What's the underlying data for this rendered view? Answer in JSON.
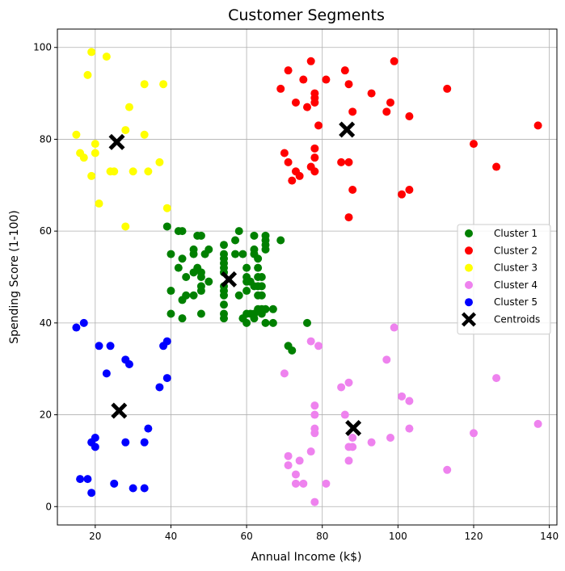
{
  "chart_data": {
    "type": "scatter",
    "title": "Customer Segments",
    "xlabel": "Annual Income (k$)",
    "ylabel": "Spending Score (1-100)",
    "xlim": [
      10,
      142
    ],
    "ylim": [
      -4,
      104
    ],
    "xticks": [
      20,
      40,
      60,
      80,
      100,
      120,
      140
    ],
    "yticks": [
      0,
      20,
      40,
      60,
      80,
      100
    ],
    "grid": true,
    "legend_position": "center-right",
    "series": [
      {
        "name": "Cluster 1",
        "color": "#008000",
        "points": [
          [
            39,
            61
          ],
          [
            40,
            55
          ],
          [
            40,
            47
          ],
          [
            40,
            42
          ],
          [
            42,
            52
          ],
          [
            42,
            60
          ],
          [
            43,
            60
          ],
          [
            43,
            54
          ],
          [
            43,
            45
          ],
          [
            43,
            41
          ],
          [
            44,
            50
          ],
          [
            44,
            46
          ],
          [
            46,
            51
          ],
          [
            46,
            46
          ],
          [
            46,
            56
          ],
          [
            46,
            55
          ],
          [
            47,
            52
          ],
          [
            47,
            59
          ],
          [
            48,
            51
          ],
          [
            48,
            59
          ],
          [
            48,
            50
          ],
          [
            48,
            48
          ],
          [
            48,
            47
          ],
          [
            48,
            42
          ],
          [
            49,
            55
          ],
          [
            50,
            49
          ],
          [
            50,
            56
          ],
          [
            54,
            47
          ],
          [
            54,
            54
          ],
          [
            54,
            53
          ],
          [
            54,
            48
          ],
          [
            54,
            52
          ],
          [
            54,
            42
          ],
          [
            54,
            51
          ],
          [
            54,
            55
          ],
          [
            54,
            41
          ],
          [
            54,
            44
          ],
          [
            54,
            57
          ],
          [
            54,
            46
          ],
          [
            57,
            58
          ],
          [
            57,
            55
          ],
          [
            58,
            60
          ],
          [
            58,
            46
          ],
          [
            59,
            55
          ],
          [
            59,
            41
          ],
          [
            60,
            49
          ],
          [
            60,
            40
          ],
          [
            60,
            42
          ],
          [
            60,
            52
          ],
          [
            60,
            47
          ],
          [
            60,
            50
          ],
          [
            61,
            42
          ],
          [
            61,
            49
          ],
          [
            62,
            41
          ],
          [
            62,
            48
          ],
          [
            62,
            59
          ],
          [
            62,
            55
          ],
          [
            62,
            56
          ],
          [
            62,
            42
          ],
          [
            63,
            50
          ],
          [
            63,
            46
          ],
          [
            63,
            43
          ],
          [
            63,
            48
          ],
          [
            63,
            52
          ],
          [
            63,
            54
          ],
          [
            64,
            42
          ],
          [
            64,
            46
          ],
          [
            64,
            48
          ],
          [
            64,
            50
          ],
          [
            64,
            43
          ],
          [
            65,
            59
          ],
          [
            65,
            43
          ],
          [
            65,
            57
          ],
          [
            65,
            56
          ],
          [
            65,
            40
          ],
          [
            65,
            58
          ],
          [
            67,
            40
          ],
          [
            67,
            43
          ],
          [
            69,
            58
          ],
          [
            71,
            35
          ],
          [
            72,
            34
          ],
          [
            76,
            40
          ]
        ]
      },
      {
        "name": "Cluster 2",
        "color": "#ff0000",
        "points": [
          [
            69,
            91
          ],
          [
            70,
            77
          ],
          [
            71,
            95
          ],
          [
            71,
            75
          ],
          [
            72,
            71
          ],
          [
            73,
            88
          ],
          [
            73,
            73
          ],
          [
            74,
            72
          ],
          [
            75,
            93
          ],
          [
            76,
            87
          ],
          [
            77,
            97
          ],
          [
            77,
            74
          ],
          [
            78,
            90
          ],
          [
            78,
            76
          ],
          [
            78,
            89
          ],
          [
            78,
            78
          ],
          [
            78,
            73
          ],
          [
            78,
            88
          ],
          [
            79,
            83
          ],
          [
            81,
            93
          ],
          [
            85,
            75
          ],
          [
            86,
            95
          ],
          [
            87,
            63
          ],
          [
            87,
            75
          ],
          [
            87,
            92
          ],
          [
            88,
            86
          ],
          [
            88,
            69
          ],
          [
            93,
            90
          ],
          [
            97,
            86
          ],
          [
            98,
            88
          ],
          [
            99,
            97
          ],
          [
            101,
            68
          ],
          [
            103,
            85
          ],
          [
            103,
            69
          ],
          [
            113,
            91
          ],
          [
            120,
            79
          ],
          [
            126,
            74
          ],
          [
            137,
            83
          ]
        ]
      },
      {
        "name": "Cluster 3",
        "color": "#ffff00",
        "points": [
          [
            15,
            81
          ],
          [
            16,
            77
          ],
          [
            17,
            76
          ],
          [
            18,
            94
          ],
          [
            19,
            72
          ],
          [
            19,
            99
          ],
          [
            20,
            77
          ],
          [
            20,
            79
          ],
          [
            21,
            66
          ],
          [
            23,
            98
          ],
          [
            24,
            73
          ],
          [
            25,
            73
          ],
          [
            28,
            82
          ],
          [
            28,
            61
          ],
          [
            29,
            87
          ],
          [
            30,
            73
          ],
          [
            33,
            92
          ],
          [
            33,
            81
          ],
          [
            34,
            73
          ],
          [
            37,
            75
          ],
          [
            38,
            92
          ],
          [
            39,
            65
          ]
        ]
      },
      {
        "name": "Cluster 4",
        "color": "#ee82ee",
        "points": [
          [
            70,
            29
          ],
          [
            71,
            11
          ],
          [
            71,
            9
          ],
          [
            73,
            5
          ],
          [
            73,
            7
          ],
          [
            74,
            10
          ],
          [
            75,
            5
          ],
          [
            77,
            12
          ],
          [
            77,
            36
          ],
          [
            78,
            22
          ],
          [
            78,
            17
          ],
          [
            78,
            20
          ],
          [
            78,
            16
          ],
          [
            78,
            1
          ],
          [
            79,
            35
          ],
          [
            81,
            5
          ],
          [
            85,
            26
          ],
          [
            86,
            20
          ],
          [
            87,
            27
          ],
          [
            87,
            13
          ],
          [
            87,
            10
          ],
          [
            88,
            13
          ],
          [
            88,
            15
          ],
          [
            93,
            14
          ],
          [
            97,
            32
          ],
          [
            98,
            15
          ],
          [
            99,
            39
          ],
          [
            101,
            24
          ],
          [
            103,
            17
          ],
          [
            103,
            23
          ],
          [
            113,
            8
          ],
          [
            120,
            16
          ],
          [
            126,
            28
          ],
          [
            137,
            18
          ]
        ]
      },
      {
        "name": "Cluster 5",
        "color": "#0000ff",
        "points": [
          [
            15,
            39
          ],
          [
            16,
            6
          ],
          [
            17,
            40
          ],
          [
            18,
            6
          ],
          [
            19,
            3
          ],
          [
            19,
            14
          ],
          [
            20,
            15
          ],
          [
            20,
            13
          ],
          [
            21,
            35
          ],
          [
            23,
            29
          ],
          [
            24,
            35
          ],
          [
            25,
            5
          ],
          [
            28,
            14
          ],
          [
            28,
            32
          ],
          [
            29,
            31
          ],
          [
            30,
            4
          ],
          [
            33,
            4
          ],
          [
            33,
            14
          ],
          [
            34,
            17
          ],
          [
            37,
            26
          ],
          [
            38,
            35
          ],
          [
            39,
            36
          ],
          [
            39,
            28
          ]
        ]
      }
    ],
    "centroids": {
      "name": "Centroids",
      "color": "#000000",
      "points": [
        [
          55.3,
          49.5
        ],
        [
          86.5,
          82.1
        ],
        [
          25.7,
          79.4
        ],
        [
          88.2,
          17.1
        ],
        [
          26.3,
          20.9
        ]
      ]
    }
  }
}
